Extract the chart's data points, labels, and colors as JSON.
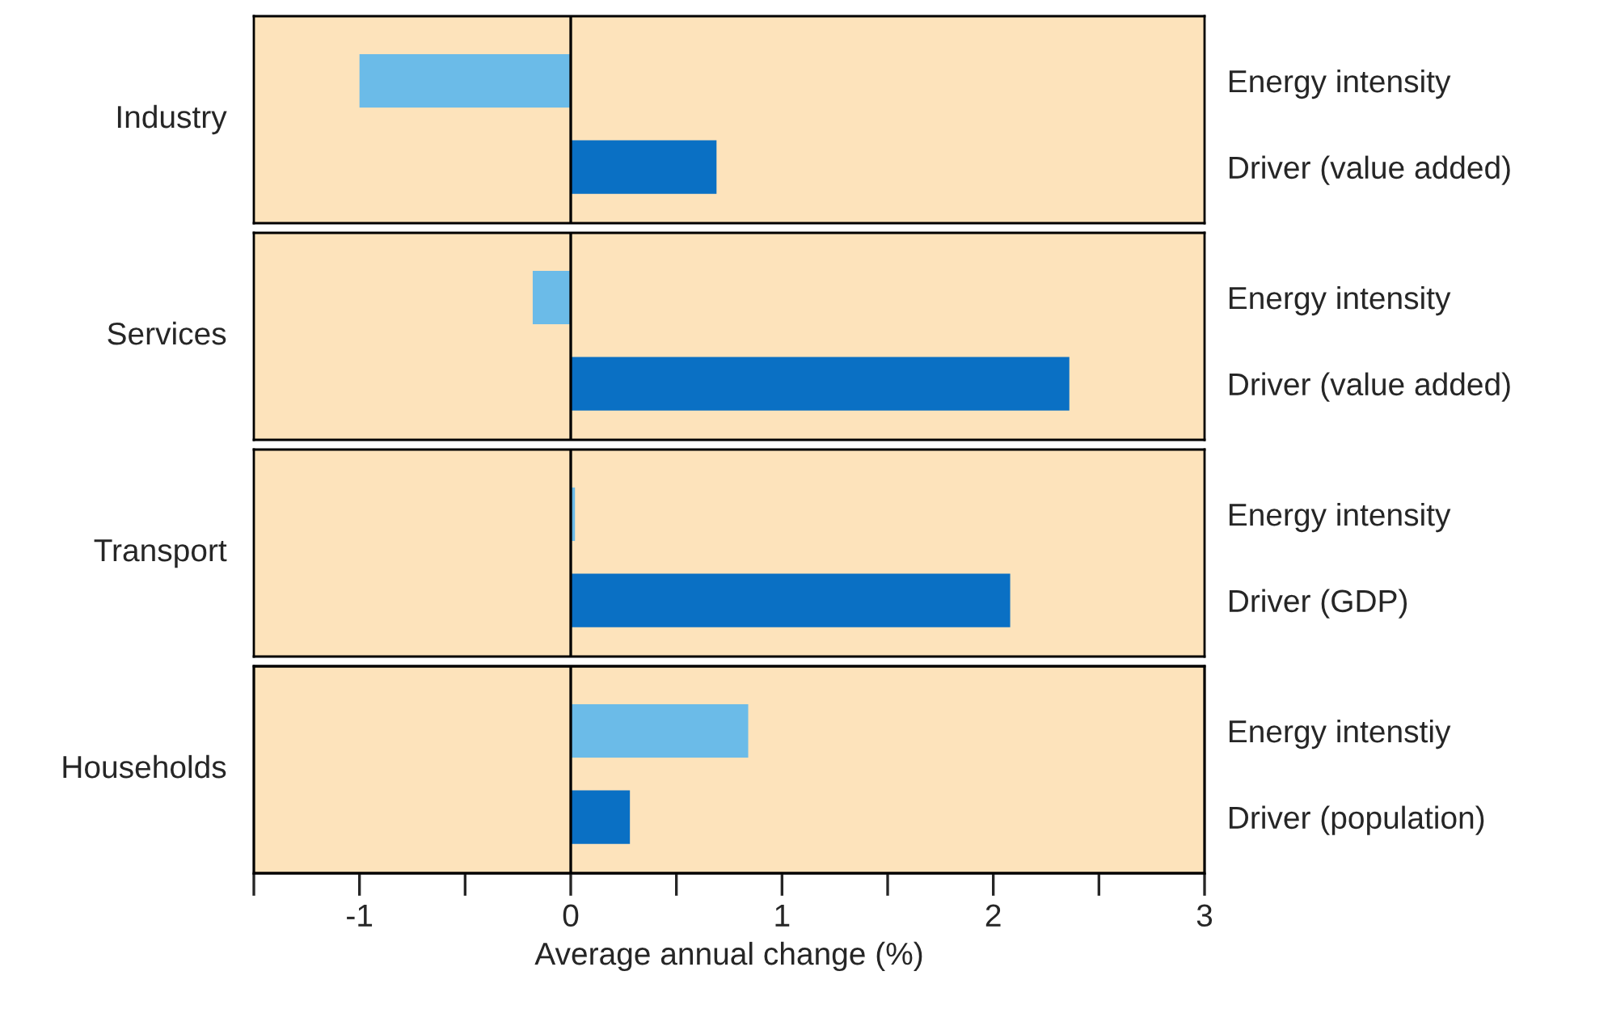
{
  "chart_data": [
    {
      "type": "bar",
      "orientation": "horizontal",
      "ylabel": "Industry",
      "categories": [
        "Energy intensity",
        "Driver (value added)"
      ],
      "series": [
        {
          "colors": [
            "#6bbbe8",
            "#0a70c4"
          ],
          "values": [
            -1.0,
            0.69
          ]
        }
      ],
      "xlim": [
        -1.5,
        3
      ],
      "ref_lines": [
        {
          "axis": "x",
          "value": 0,
          "color": "#000000"
        }
      ],
      "tick_labels": "y",
      "grid": false
    },
    {
      "type": "bar",
      "orientation": "horizontal",
      "ylabel": "Services",
      "categories": [
        "Energy intensity",
        "Driver (value added)"
      ],
      "series": [
        {
          "colors": [
            "#6bbbe8",
            "#0a70c4"
          ],
          "values": [
            -0.18,
            2.36
          ]
        }
      ],
      "xlim": [
        -1.5,
        3
      ],
      "ref_lines": [
        {
          "axis": "x",
          "value": 0,
          "color": "#000000"
        }
      ],
      "tick_labels": "y",
      "grid": false
    },
    {
      "type": "bar",
      "orientation": "horizontal",
      "ylabel": "Transport",
      "categories": [
        "Energy intensity",
        "Driver (GDP)"
      ],
      "series": [
        {
          "colors": [
            "#6bbbe8",
            "#0a70c4"
          ],
          "values": [
            0.02,
            2.08
          ]
        }
      ],
      "xlim": [
        -1.5,
        3
      ],
      "ref_lines": [
        {
          "axis": "x",
          "value": 0,
          "color": "#000000"
        }
      ],
      "tick_labels": "y",
      "grid": false
    },
    {
      "type": "bar",
      "orientation": "horizontal",
      "ylabel": "Households",
      "xlabel": "Average annual change (%)",
      "categories": [
        "Energy intenstiy",
        "Driver (population)"
      ],
      "series": [
        {
          "colors": [
            "#6bbbe8",
            "#0a70c4"
          ],
          "values": [
            0.84,
            0.28
          ]
        }
      ],
      "xlim": [
        -1.5,
        3
      ],
      "xticks": [
        {
          "value": -1.5,
          "label": null
        },
        -1,
        {
          "value": -0.5,
          "label": null
        },
        0,
        {
          "value": 0.5,
          "label": null
        },
        1,
        {
          "value": 1.5,
          "label": null
        },
        2,
        {
          "value": 2.5,
          "label": null
        },
        3
      ],
      "ref_lines": [
        {
          "axis": "x",
          "value": 0,
          "color": "#000000"
        }
      ],
      "grid": false
    }
  ]
}
